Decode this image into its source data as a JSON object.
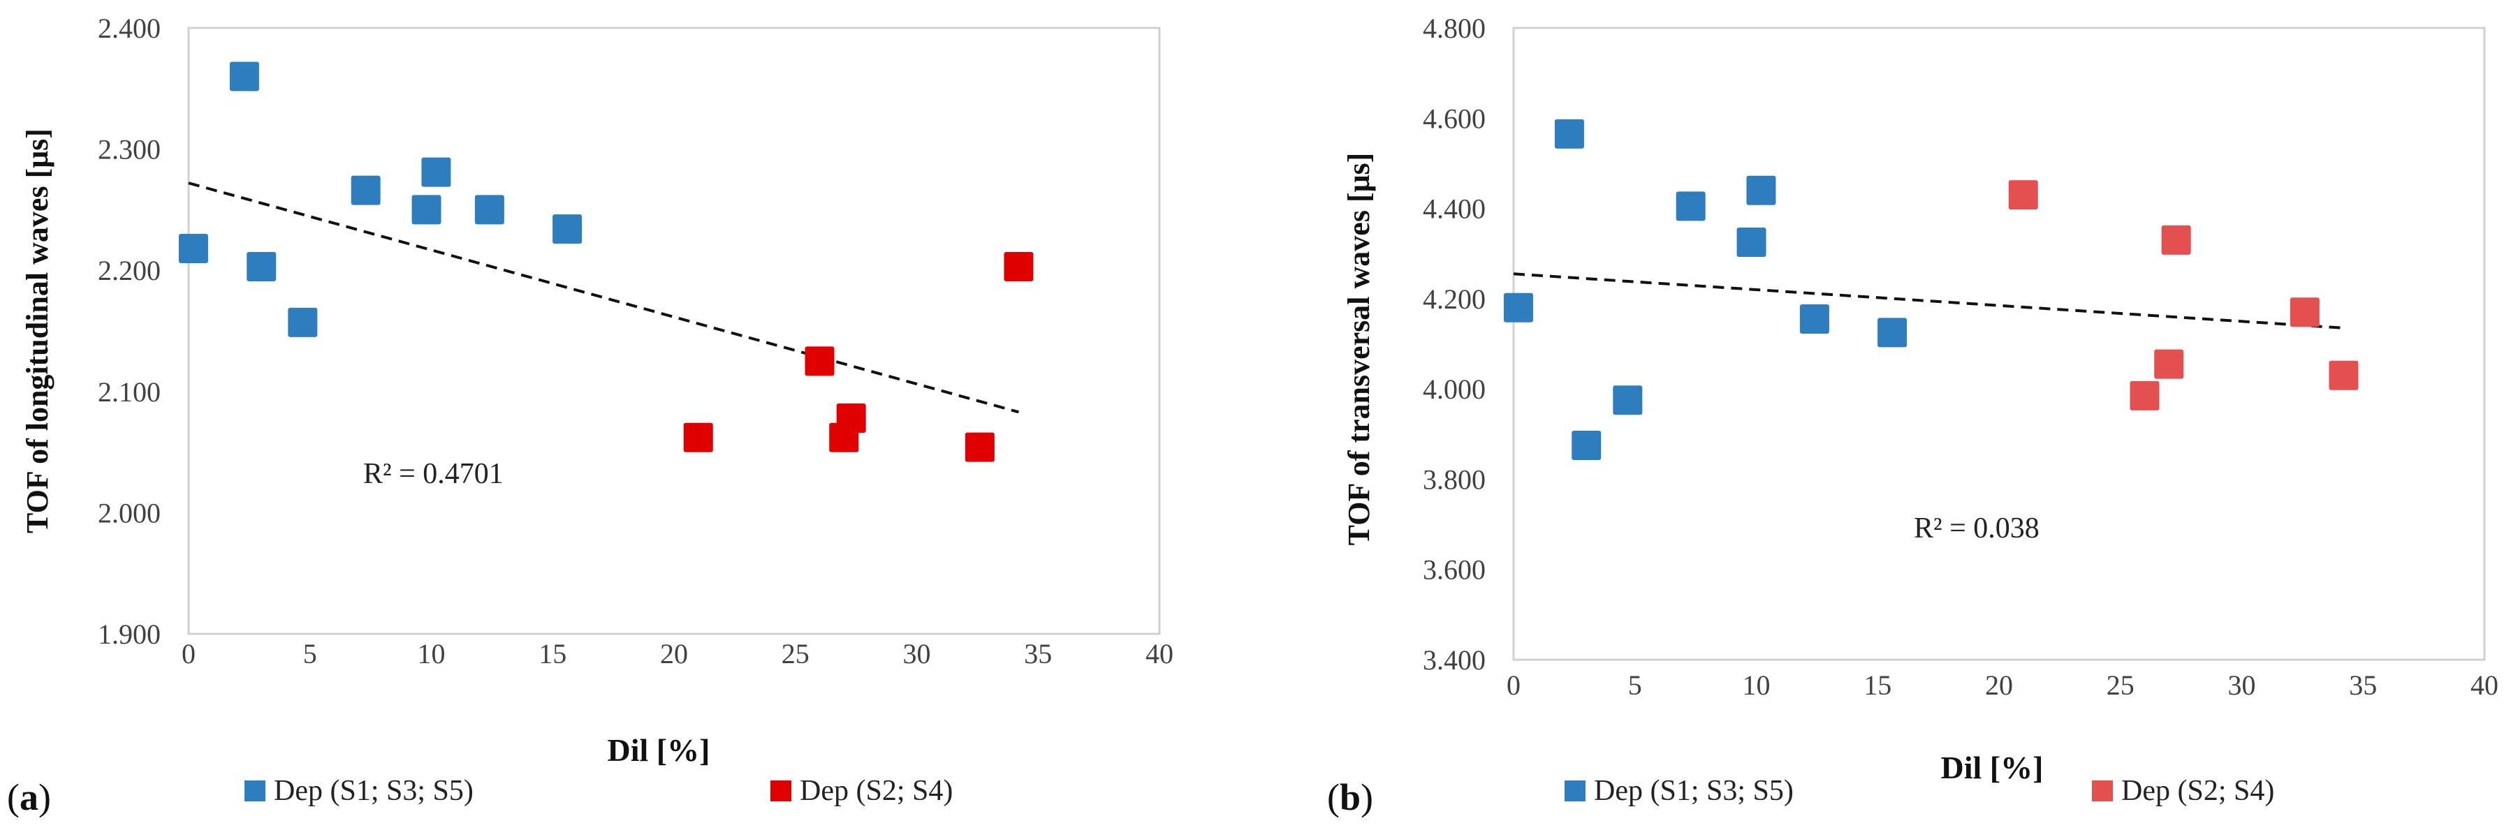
{
  "chart_data": [
    {
      "type": "scatter",
      "panel": "a",
      "xlabel": "Dil [%]",
      "ylabel": "TOF of  longitudinal waves [μs]",
      "xlim": [
        0,
        40
      ],
      "ylim": [
        1.9,
        2.4
      ],
      "x_ticks": [
        0,
        5,
        10,
        15,
        20,
        25,
        30,
        35,
        40
      ],
      "x_tick_labels": [
        "0",
        "5",
        "10",
        "15",
        "20",
        "25",
        "30",
        "35",
        "40"
      ],
      "y_ticks": [
        1.9,
        2.0,
        2.1,
        2.2,
        2.3,
        2.4
      ],
      "y_tick_labels": [
        "1.900",
        "2.000",
        "2.100",
        "2.200",
        "2.300",
        "2.400"
      ],
      "series": [
        {
          "name": "Dep (S1; S3; S5)",
          "color": "#2e7ebf",
          "points": [
            [
              0.2,
              2.218
            ],
            [
              2.3,
              2.36
            ],
            [
              3.0,
              2.203
            ],
            [
              4.7,
              2.157
            ],
            [
              7.3,
              2.266
            ],
            [
              9.8,
              2.25
            ],
            [
              10.2,
              2.281
            ],
            [
              12.4,
              2.25
            ],
            [
              15.6,
              2.234
            ]
          ]
        },
        {
          "name": "Dep (S2; S4)",
          "color": "#e00000",
          "points": [
            [
              21.0,
              2.062
            ],
            [
              26.0,
              2.125
            ],
            [
              27.0,
              2.062
            ],
            [
              27.3,
              2.078
            ],
            [
              32.6,
              2.054
            ],
            [
              34.2,
              2.203
            ]
          ]
        }
      ],
      "trendline": {
        "x": [
          0,
          34.2
        ],
        "y": [
          2.272,
          2.083
        ],
        "r2_label": "R² = 0.4701",
        "color": "#111111"
      }
    },
    {
      "type": "scatter",
      "panel": "b",
      "xlabel": "Dil [%]",
      "ylabel": "TOF of transversal waves [μs]",
      "xlim": [
        0,
        40
      ],
      "ylim": [
        3.4,
        4.8
      ],
      "x_ticks": [
        0,
        5,
        10,
        15,
        20,
        25,
        30,
        35,
        40
      ],
      "x_tick_labels": [
        "0",
        "5",
        "10",
        "15",
        "20",
        "25",
        "30",
        "35",
        "40"
      ],
      "y_ticks": [
        3.4,
        3.6,
        3.8,
        4.0,
        4.2,
        4.4,
        4.6,
        4.8
      ],
      "y_tick_labels": [
        "3.400",
        "3.600",
        "3.800",
        "4.000",
        "4.200",
        "4.400",
        "4.600",
        "4.800"
      ],
      "series": [
        {
          "name": "Dep (S1; S3; S5)",
          "color": "#2e7ebf",
          "points": [
            [
              0.2,
              4.18
            ],
            [
              2.3,
              4.565
            ],
            [
              3.0,
              3.875
            ],
            [
              4.7,
              3.975
            ],
            [
              7.3,
              4.405
            ],
            [
              9.8,
              4.325
            ],
            [
              10.2,
              4.44
            ],
            [
              12.4,
              4.155
            ],
            [
              15.6,
              4.125
            ]
          ]
        },
        {
          "name": "Dep (S2; S4)",
          "color": "#e45050",
          "points": [
            [
              21.0,
              4.43
            ],
            [
              26.0,
              3.985
            ],
            [
              27.0,
              4.055
            ],
            [
              27.3,
              4.33
            ],
            [
              32.6,
              4.17
            ],
            [
              34.2,
              4.03
            ]
          ]
        }
      ],
      "trendline": {
        "x": [
          0,
          34.2
        ],
        "y": [
          4.255,
          4.135
        ],
        "r2_label": "R² = 0.038",
        "color": "#111111"
      }
    }
  ],
  "panels": {
    "a": {
      "label_open": "(",
      "label_letter": "a",
      "label_close": ")"
    },
    "b": {
      "label_open": "(",
      "label_letter": "b",
      "label_close": ")"
    }
  }
}
